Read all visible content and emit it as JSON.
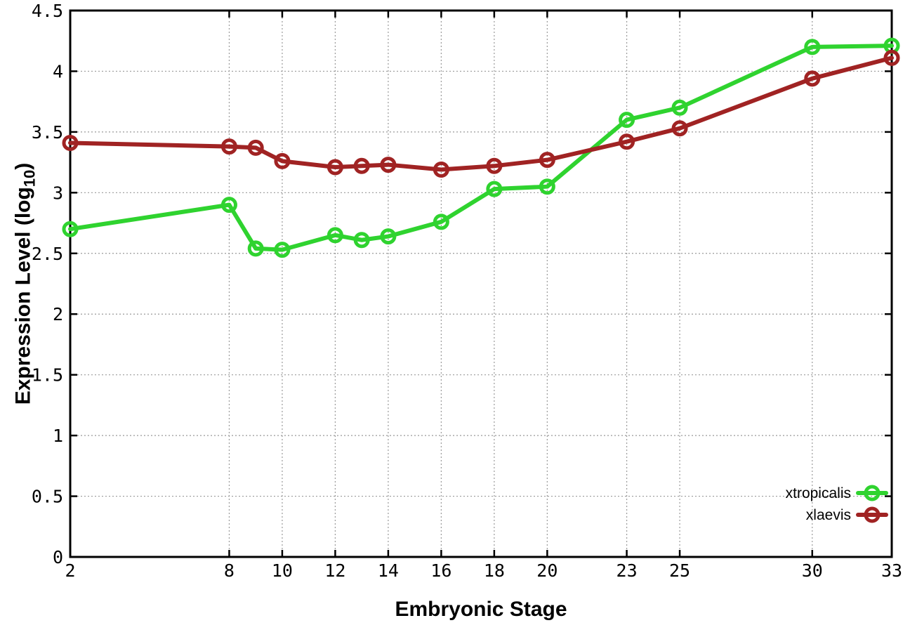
{
  "chart_data": {
    "type": "line",
    "title": "",
    "xlabel": "Embryonic Stage",
    "ylabel": "Expression Level (log10)",
    "ylabel_parts": {
      "main": "Expression Level (log",
      "sub": "10",
      "close": ")"
    },
    "xlim": [
      2,
      33
    ],
    "ylim": [
      0,
      4.5
    ],
    "x_ticks": [
      2,
      8,
      10,
      12,
      14,
      16,
      18,
      20,
      23,
      25,
      30,
      33
    ],
    "y_ticks": [
      0,
      0.5,
      1,
      1.5,
      2,
      2.5,
      3,
      3.5,
      4,
      4.5
    ],
    "grid": true,
    "legend_position": "inside-bottom-right",
    "x": [
      2,
      8,
      9,
      10,
      12,
      13,
      14,
      16,
      18,
      20,
      23,
      25,
      30,
      33
    ],
    "series": [
      {
        "name": "xtropicalis",
        "color": "#2fd32f",
        "values": [
          2.7,
          2.9,
          2.54,
          2.53,
          2.65,
          2.61,
          2.64,
          2.76,
          3.03,
          3.05,
          3.6,
          3.7,
          4.2,
          4.21
        ]
      },
      {
        "name": "xlaevis",
        "color": "#a02323",
        "values": [
          3.41,
          3.38,
          3.37,
          3.26,
          3.21,
          3.22,
          3.23,
          3.19,
          3.22,
          3.27,
          3.42,
          3.53,
          3.94,
          4.11
        ]
      }
    ]
  },
  "style": {
    "background": "#ffffff",
    "axis_color": "#000000",
    "grid_color": "#9a9a9a"
  }
}
